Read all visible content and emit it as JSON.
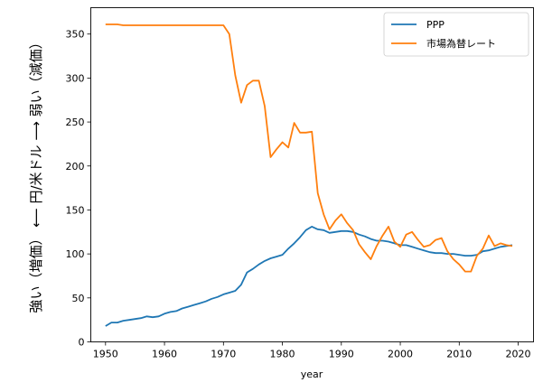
{
  "chart_data": {
    "type": "line",
    "title": "",
    "xlabel": "year",
    "ylabel": "強い（増価） ⟵  円/米ドル  ⟶ 弱い（減価）",
    "xlim": [
      1947.5,
      2022.6
    ],
    "ylim": [
      0,
      380
    ],
    "xticks": [
      1950,
      1960,
      1970,
      1980,
      1990,
      2000,
      2010,
      2020
    ],
    "yticks": [
      0,
      50,
      100,
      150,
      200,
      250,
      300,
      350
    ],
    "grid": false,
    "legend_position": "top-right",
    "x": [
      1950,
      1951,
      1952,
      1953,
      1954,
      1955,
      1956,
      1957,
      1958,
      1959,
      1960,
      1961,
      1962,
      1963,
      1964,
      1965,
      1966,
      1967,
      1968,
      1969,
      1970,
      1971,
      1972,
      1973,
      1974,
      1975,
      1976,
      1977,
      1978,
      1979,
      1980,
      1981,
      1982,
      1983,
      1984,
      1985,
      1986,
      1987,
      1988,
      1989,
      1990,
      1991,
      1992,
      1993,
      1994,
      1995,
      1996,
      1997,
      1998,
      1999,
      2000,
      2001,
      2002,
      2003,
      2004,
      2005,
      2006,
      2007,
      2008,
      2009,
      2010,
      2011,
      2012,
      2013,
      2014,
      2015,
      2016,
      2017,
      2018,
      2019
    ],
    "series": [
      {
        "name": "PPP",
        "color": "#1f77b4",
        "values": [
          18,
          22,
          22,
          24,
          25,
          26,
          27,
          29,
          28,
          29,
          32,
          34,
          35,
          38,
          40,
          42,
          44,
          46,
          49,
          51,
          54,
          56,
          58,
          65,
          79,
          83,
          88,
          92,
          95,
          97,
          99,
          106,
          112,
          119,
          127,
          131,
          128,
          127,
          124,
          125,
          126,
          126,
          125,
          122,
          120,
          117,
          115,
          115,
          114,
          112,
          110,
          110,
          108,
          106,
          104,
          102,
          101,
          101,
          100,
          100,
          99,
          98,
          98,
          99,
          103,
          104,
          106,
          108,
          109,
          110
        ]
      },
      {
        "name": "市場為替レート",
        "color": "#ff7f0e",
        "values": [
          361,
          361,
          361,
          360,
          360,
          360,
          360,
          360,
          360,
          360,
          360,
          360,
          360,
          360,
          360,
          360,
          360,
          360,
          360,
          360,
          360,
          350,
          303,
          272,
          292,
          297,
          297,
          268,
          210,
          219,
          227,
          221,
          249,
          238,
          238,
          239,
          169,
          145,
          128,
          138,
          145,
          135,
          127,
          111,
          102,
          94,
          109,
          121,
          131,
          114,
          108,
          122,
          125,
          116,
          108,
          110,
          116,
          118,
          103,
          94,
          88,
          80,
          80,
          98,
          106,
          121,
          109,
          112,
          110,
          109
        ]
      }
    ]
  }
}
